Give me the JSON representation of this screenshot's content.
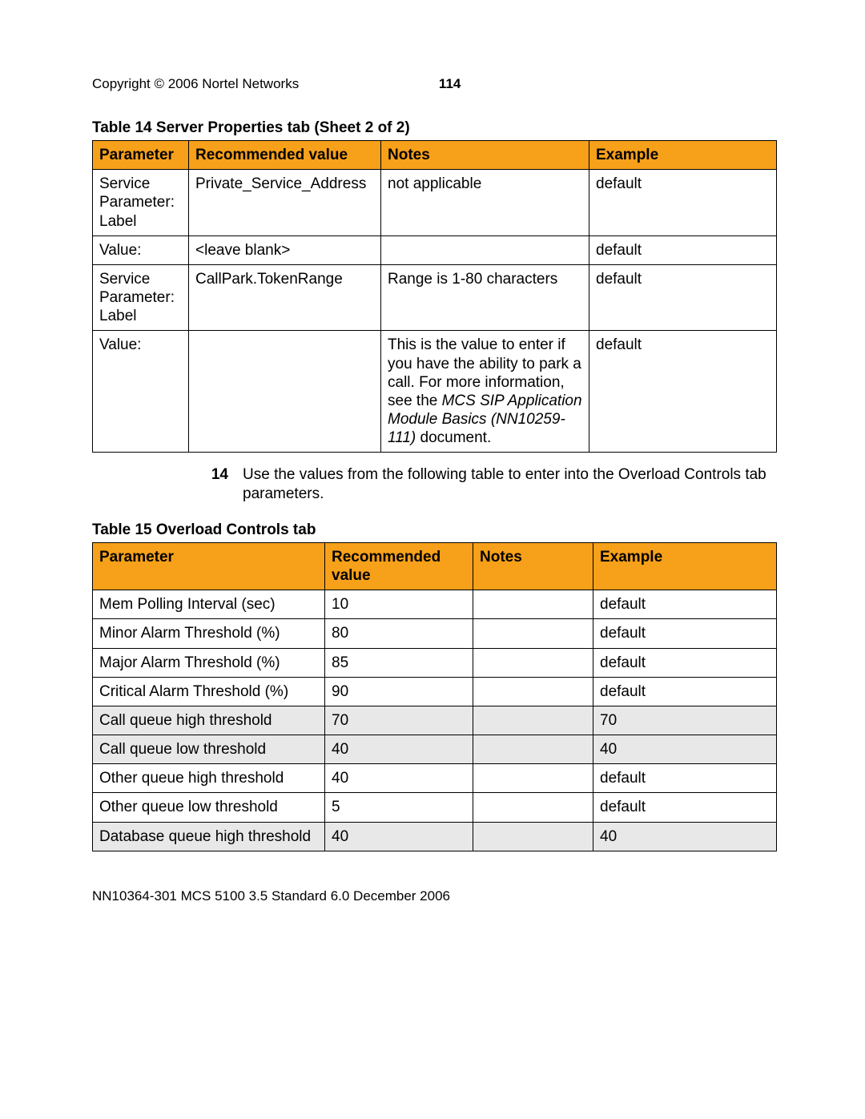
{
  "header": {
    "copyright": "Copyright © 2006 Nortel Networks",
    "page_number": "114"
  },
  "table14": {
    "caption": "Table 14  Server Properties tab (Sheet 2 of 2)",
    "columns": [
      "Parameter",
      "Recommended value",
      "Notes",
      "Example"
    ],
    "header_bg": "#f7a01a",
    "rows": [
      {
        "shaded": false,
        "cells": [
          "Service Parameter: Label",
          "Private_Service_Address",
          "not applicable",
          "default"
        ]
      },
      {
        "shaded": false,
        "cells": [
          "Value:",
          "<leave blank>",
          "",
          "default"
        ]
      },
      {
        "shaded": false,
        "cells": [
          "Service Parameter: Label",
          "CallPark.TokenRange",
          "Range is 1-80 characters",
          "default"
        ]
      },
      {
        "shaded": false,
        "cells": [
          "Value:",
          "",
          {
            "plain1": "This is the value to enter if you have the ability to park a call. For more information, see the ",
            "italic": "MCS SIP Application Module Basics (NN10259-111)",
            "plain2": " document."
          },
          "default"
        ]
      }
    ]
  },
  "step": {
    "number": "14",
    "text": "Use the values from the following table to enter into the Overload Controls tab parameters."
  },
  "table15": {
    "caption": "Table 15  Overload Controls tab",
    "columns": [
      "Parameter",
      "Recommended value",
      "Notes",
      "Example"
    ],
    "header_bg": "#f7a01a",
    "rows": [
      {
        "shaded": false,
        "cells": [
          "Mem Polling Interval (sec)",
          "10",
          "",
          "default"
        ]
      },
      {
        "shaded": false,
        "cells": [
          "Minor Alarm Threshold (%)",
          "80",
          "",
          "default"
        ]
      },
      {
        "shaded": false,
        "cells": [
          "Major Alarm Threshold (%)",
          "85",
          "",
          "default"
        ]
      },
      {
        "shaded": false,
        "cells": [
          "Critical Alarm Threshold (%)",
          "90",
          "",
          "default"
        ]
      },
      {
        "shaded": true,
        "cells": [
          "Call queue high threshold",
          "70",
          "",
          "70"
        ]
      },
      {
        "shaded": true,
        "cells": [
          "Call queue low threshold",
          "40",
          "",
          "40"
        ]
      },
      {
        "shaded": false,
        "cells": [
          "Other queue high threshold",
          "40",
          "",
          "default"
        ]
      },
      {
        "shaded": false,
        "cells": [
          "Other queue low threshold",
          "5",
          "",
          "default"
        ]
      },
      {
        "shaded": true,
        "cells": [
          "Database queue high threshold",
          "40",
          "",
          "40"
        ]
      }
    ]
  },
  "footer": {
    "text": "NN10364-301   MCS 5100 3.5   Standard  6.0   December 2006"
  }
}
